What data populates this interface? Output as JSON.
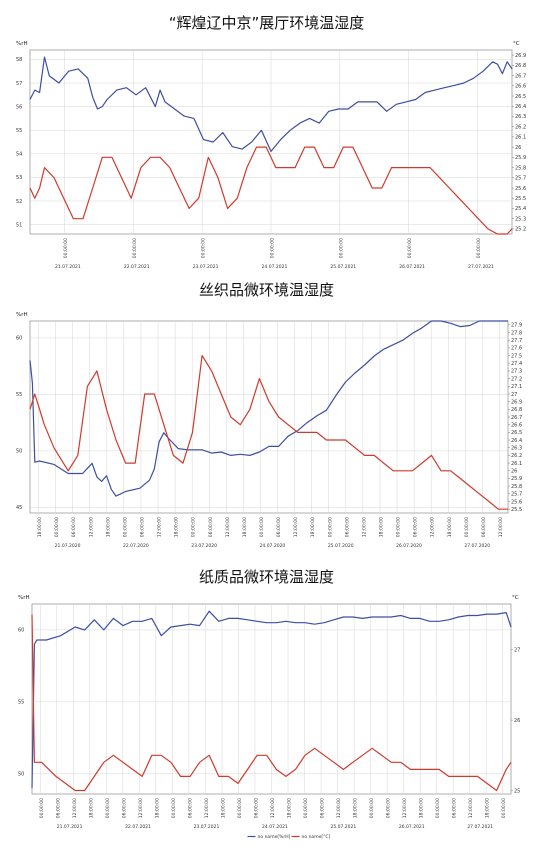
{
  "colors": {
    "humidity": "#3d4fa3",
    "temperature": "#cf3a2c",
    "grid": "#d6d6d6",
    "axis": "#7a7a7a"
  },
  "chart_data": [
    {
      "type": "line",
      "title": "“辉煌辽中京”展厅环境温湿度",
      "left_unit": "%rH",
      "right_unit": "°C",
      "legend": [
        "no name[%rH]",
        "no name[°C]"
      ],
      "left_ticks": [
        "51",
        "52",
        "53",
        "54",
        "55",
        "56",
        "57",
        "58"
      ],
      "right_ticks": [
        "25.2",
        "25.3",
        "25.4",
        "25.5",
        "25.6",
        "25.7",
        "25.8",
        "25.9",
        "26",
        "26.1",
        "26.2",
        "26.3",
        "26.4",
        "26.5",
        "26.6",
        "26.7",
        "26.8",
        "26.9"
      ],
      "time_ticks": [
        "00:00:00",
        "00:00:00",
        "00:00:00",
        "00:00:00",
        "00:00:00",
        "00:00:00",
        "00:00:00"
      ],
      "date_ticks": [
        "21.07.2021",
        "22.07.2021",
        "23.07.2021",
        "24.07.2021",
        "25.07.2021",
        "26.07.2021",
        "27.07.2021"
      ],
      "ylim_left": [
        50.6,
        58.4
      ],
      "ylim_right": [
        25.15,
        26.95
      ],
      "series": [
        {
          "name": "no name[%rH]",
          "axis": "left",
          "x": [
            0,
            0.01,
            0.02,
            0.03,
            0.04,
            0.06,
            0.08,
            0.1,
            0.12,
            0.13,
            0.14,
            0.15,
            0.16,
            0.18,
            0.2,
            0.22,
            0.24,
            0.26,
            0.27,
            0.28,
            0.3,
            0.32,
            0.34,
            0.36,
            0.38,
            0.4,
            0.42,
            0.44,
            0.46,
            0.48,
            0.5,
            0.52,
            0.54,
            0.56,
            0.58,
            0.6,
            0.62,
            0.64,
            0.66,
            0.68,
            0.7,
            0.72,
            0.74,
            0.76,
            0.78,
            0.8,
            0.82,
            0.84,
            0.86,
            0.88,
            0.9,
            0.92,
            0.94,
            0.96,
            0.97,
            0.98,
            0.99,
            1
          ],
          "values": [
            56.3,
            56.7,
            56.6,
            58.1,
            57.3,
            57.0,
            57.5,
            57.6,
            57.2,
            56.4,
            55.9,
            56.0,
            56.3,
            56.7,
            56.8,
            56.5,
            56.8,
            56.0,
            56.7,
            56.2,
            55.9,
            55.6,
            55.5,
            54.6,
            54.5,
            54.9,
            54.3,
            54.2,
            54.5,
            55.0,
            54.1,
            54.6,
            55.0,
            55.3,
            55.5,
            55.3,
            55.8,
            55.9,
            55.9,
            56.2,
            56.2,
            56.2,
            55.8,
            56.1,
            56.2,
            56.3,
            56.6,
            56.7,
            56.8,
            56.9,
            57.0,
            57.2,
            57.5,
            57.9,
            57.8,
            57.4,
            57.9,
            57.6
          ]
        },
        {
          "name": "no name[°C]",
          "axis": "right",
          "x": [
            0,
            0.01,
            0.02,
            0.03,
            0.05,
            0.07,
            0.09,
            0.11,
            0.13,
            0.15,
            0.17,
            0.19,
            0.21,
            0.23,
            0.25,
            0.27,
            0.29,
            0.31,
            0.33,
            0.35,
            0.37,
            0.39,
            0.41,
            0.43,
            0.45,
            0.47,
            0.49,
            0.51,
            0.53,
            0.55,
            0.57,
            0.59,
            0.61,
            0.63,
            0.65,
            0.67,
            0.69,
            0.71,
            0.73,
            0.75,
            0.77,
            0.79,
            0.81,
            0.83,
            0.85,
            0.87,
            0.89,
            0.91,
            0.93,
            0.95,
            0.97,
            0.99,
            1
          ],
          "values": [
            25.6,
            25.5,
            25.6,
            25.8,
            25.7,
            25.5,
            25.3,
            25.3,
            25.6,
            25.9,
            25.9,
            25.7,
            25.5,
            25.8,
            25.9,
            25.9,
            25.8,
            25.6,
            25.4,
            25.5,
            25.9,
            25.7,
            25.4,
            25.5,
            25.8,
            26.0,
            26.0,
            25.8,
            25.8,
            25.8,
            26.0,
            26.0,
            25.8,
            25.8,
            26.0,
            26.0,
            25.8,
            25.6,
            25.6,
            25.8,
            25.8,
            25.8,
            25.8,
            25.8,
            25.7,
            25.6,
            25.5,
            25.4,
            25.3,
            25.2,
            25.1,
            25.1,
            25.2
          ]
        }
      ]
    },
    {
      "type": "line",
      "title": "丝织品微环境温湿度",
      "left_unit": "%rH",
      "right_unit": "",
      "legend": [
        "no name[%rH]",
        "no name[°C]"
      ],
      "left_ticks": [
        "45",
        "50",
        "55",
        "60"
      ],
      "right_ticks": [
        "25.5",
        "25.6",
        "25.7",
        "25.8",
        "25.9",
        "26",
        "26.1",
        "26.2",
        "26.3",
        "26.4",
        "26.5",
        "26.6",
        "26.7",
        "26.8",
        "26.9",
        "27",
        "27.1",
        "27.2",
        "27.3",
        "27.4",
        "27.5",
        "27.6",
        "27.7",
        "27.8",
        "27.9"
      ],
      "time_ticks": [
        "18:00:00",
        "00:00:00",
        "06:00:00",
        "12:00:00",
        "18:00:00",
        "00:00:00",
        "06:00:00",
        "12:00:00",
        "18:00:00",
        "00:00:00",
        "06:00:00",
        "12:00:00",
        "18:00:00",
        "00:00:00",
        "06:00:00",
        "12:00:00",
        "18:00:00",
        "00:00:00",
        "06:00:00",
        "12:00:00",
        "18:00:00",
        "00:00:00",
        "06:00:00",
        "12:00:00",
        "18:00:00",
        "00:00:00",
        "06:00:00",
        "12:00:00"
      ],
      "date_ticks": [
        "21.07.2020",
        "22.07.2020",
        "23.07.2020",
        "24.07.2020",
        "25.07.2020",
        "26.07.2020",
        "27.07.2020"
      ],
      "ylim_left": [
        44.5,
        61.5
      ],
      "ylim_right": [
        25.45,
        27.95
      ],
      "series": [
        {
          "name": "no name[%rH]",
          "axis": "left",
          "x": [
            0,
            0.005,
            0.01,
            0.02,
            0.05,
            0.08,
            0.11,
            0.13,
            0.14,
            0.15,
            0.16,
            0.17,
            0.18,
            0.2,
            0.23,
            0.25,
            0.26,
            0.27,
            0.28,
            0.29,
            0.31,
            0.33,
            0.36,
            0.38,
            0.4,
            0.42,
            0.44,
            0.46,
            0.48,
            0.5,
            0.52,
            0.54,
            0.56,
            0.58,
            0.6,
            0.62,
            0.64,
            0.66,
            0.68,
            0.7,
            0.72,
            0.74,
            0.76,
            0.78,
            0.8,
            0.82,
            0.84,
            0.86,
            0.88,
            0.9,
            0.92,
            0.94,
            0.96,
            0.98,
            1
          ],
          "values": [
            58.0,
            56.0,
            49.0,
            49.1,
            48.8,
            48.0,
            48.0,
            48.9,
            47.7,
            47.3,
            47.8,
            46.6,
            46.0,
            46.4,
            46.7,
            47.4,
            48.4,
            50.8,
            51.6,
            51.1,
            50.2,
            50.1,
            50.1,
            49.8,
            49.9,
            49.6,
            49.7,
            49.6,
            49.9,
            50.4,
            50.4,
            51.3,
            51.8,
            52.5,
            53.1,
            53.6,
            54.9,
            56.1,
            56.9,
            57.6,
            58.4,
            59.0,
            59.4,
            59.8,
            60.4,
            60.9,
            62.0,
            61.6,
            61.3,
            61.0,
            61.1,
            61.6,
            61.8,
            61.5,
            61.7
          ]
        },
        {
          "name": "no name[°C]",
          "axis": "right",
          "x": [
            0,
            0.01,
            0.02,
            0.03,
            0.05,
            0.08,
            0.1,
            0.12,
            0.14,
            0.16,
            0.18,
            0.2,
            0.22,
            0.24,
            0.26,
            0.28,
            0.3,
            0.32,
            0.34,
            0.36,
            0.38,
            0.4,
            0.42,
            0.44,
            0.46,
            0.48,
            0.5,
            0.52,
            0.54,
            0.56,
            0.58,
            0.6,
            0.62,
            0.64,
            0.66,
            0.68,
            0.7,
            0.72,
            0.74,
            0.76,
            0.78,
            0.8,
            0.82,
            0.84,
            0.86,
            0.88,
            0.9,
            0.92,
            0.94,
            0.96,
            0.98,
            1
          ],
          "values": [
            26.8,
            27.0,
            26.8,
            26.6,
            26.3,
            26.0,
            26.2,
            27.1,
            27.3,
            26.8,
            26.4,
            26.1,
            26.1,
            27.0,
            27.0,
            26.6,
            26.2,
            26.1,
            26.5,
            27.5,
            27.3,
            27.0,
            26.7,
            26.6,
            26.8,
            27.2,
            26.9,
            26.7,
            26.6,
            26.5,
            26.5,
            26.5,
            26.4,
            26.4,
            26.4,
            26.3,
            26.2,
            26.2,
            26.1,
            26.0,
            26.0,
            26.0,
            26.1,
            26.2,
            26.0,
            26.0,
            25.9,
            25.8,
            25.7,
            25.6,
            25.5,
            25.5
          ]
        }
      ]
    },
    {
      "type": "line",
      "title": "纸质品微环境温湿度",
      "left_unit": "%rH",
      "right_unit": "°C",
      "legend": [
        "no name[%rH]",
        "no name[°C]"
      ],
      "left_ticks": [
        "50",
        "55",
        "60"
      ],
      "right_ticks": [
        "25",
        "26",
        "27"
      ],
      "time_ticks": [
        "00:00:00",
        "06:00:00",
        "12:00:00",
        "18:00:00",
        "00:00:00",
        "06:00:00",
        "12:00:00",
        "18:00:00",
        "00:00:00",
        "06:00:00",
        "12:00:00",
        "18:00:00",
        "00:00:00",
        "06:00:00",
        "12:00:00",
        "18:00:00",
        "00:00:00",
        "06:00:00",
        "12:00:00",
        "18:00:00",
        "00:00:00",
        "06:00:00",
        "12:00:00",
        "18:00:00",
        "00:00:00",
        "06:00:00",
        "12:00:00",
        "18:00:00",
        "00:00:00"
      ],
      "date_ticks": [
        "21.07.2021",
        "22.07.2021",
        "23.07.2021",
        "24.07.2021",
        "25.07.2021",
        "26.07.2021",
        "27.07.2021"
      ],
      "ylim_left": [
        48.6,
        61.8
      ],
      "ylim_right": [
        24.95,
        27.65
      ],
      "series": [
        {
          "name": "no name[%rH]",
          "axis": "left",
          "x": [
            0,
            0.005,
            0.01,
            0.03,
            0.06,
            0.09,
            0.11,
            0.13,
            0.15,
            0.17,
            0.19,
            0.21,
            0.23,
            0.25,
            0.27,
            0.29,
            0.31,
            0.33,
            0.35,
            0.37,
            0.39,
            0.41,
            0.43,
            0.45,
            0.47,
            0.49,
            0.51,
            0.53,
            0.55,
            0.57,
            0.59,
            0.61,
            0.63,
            0.65,
            0.67,
            0.69,
            0.71,
            0.73,
            0.75,
            0.77,
            0.79,
            0.81,
            0.83,
            0.85,
            0.87,
            0.89,
            0.91,
            0.93,
            0.95,
            0.97,
            0.99,
            1
          ],
          "values": [
            49.0,
            59.0,
            59.3,
            59.3,
            59.6,
            60.2,
            60.0,
            60.7,
            60.0,
            60.8,
            60.3,
            60.6,
            60.6,
            60.8,
            59.6,
            60.2,
            60.3,
            60.4,
            60.3,
            61.3,
            60.6,
            60.8,
            60.8,
            60.7,
            60.6,
            60.5,
            60.5,
            60.6,
            60.5,
            60.5,
            60.4,
            60.5,
            60.7,
            60.9,
            60.9,
            60.8,
            60.9,
            60.9,
            60.9,
            61.0,
            60.8,
            60.8,
            60.6,
            60.6,
            60.7,
            60.9,
            61.0,
            61.0,
            61.1,
            61.1,
            61.2,
            60.2
          ]
        },
        {
          "name": "no name[°C]",
          "axis": "right",
          "x": [
            0,
            0.005,
            0.01,
            0.02,
            0.05,
            0.07,
            0.09,
            0.11,
            0.13,
            0.15,
            0.17,
            0.19,
            0.21,
            0.23,
            0.25,
            0.27,
            0.29,
            0.31,
            0.33,
            0.35,
            0.37,
            0.39,
            0.41,
            0.43,
            0.45,
            0.47,
            0.49,
            0.51,
            0.53,
            0.55,
            0.57,
            0.59,
            0.61,
            0.63,
            0.65,
            0.67,
            0.69,
            0.71,
            0.73,
            0.75,
            0.77,
            0.79,
            0.81,
            0.83,
            0.85,
            0.87,
            0.89,
            0.91,
            0.93,
            0.95,
            0.97,
            0.99,
            1
          ],
          "values": [
            27.5,
            25.4,
            25.4,
            25.4,
            25.2,
            25.1,
            25.0,
            25.0,
            25.2,
            25.4,
            25.5,
            25.4,
            25.3,
            25.2,
            25.5,
            25.5,
            25.4,
            25.2,
            25.2,
            25.4,
            25.5,
            25.2,
            25.2,
            25.1,
            25.3,
            25.5,
            25.5,
            25.3,
            25.2,
            25.3,
            25.5,
            25.6,
            25.5,
            25.4,
            25.3,
            25.4,
            25.5,
            25.6,
            25.5,
            25.4,
            25.4,
            25.3,
            25.3,
            25.3,
            25.3,
            25.2,
            25.2,
            25.2,
            25.2,
            25.1,
            25.0,
            25.3,
            25.4
          ]
        }
      ]
    }
  ]
}
